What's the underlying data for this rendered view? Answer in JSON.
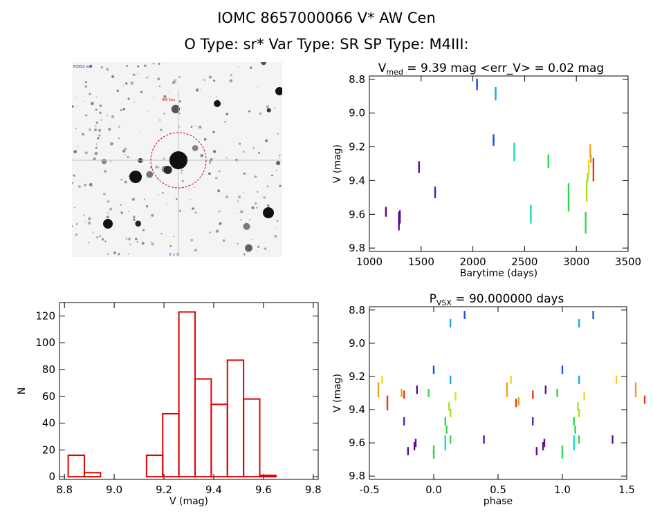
{
  "header": {
    "title": "IOMC 8657000066   V* AW Cen",
    "subtitle": "O Type: sr*  Var Type: SR  SP Type: M4III:"
  },
  "image_labels": {
    "top_left": "POSS2 red",
    "target": "AW Cen",
    "bottom": "3' x 3'"
  },
  "colors": {
    "histogram": "#dd0000",
    "axis": "#000000",
    "target_circle": "#dd0000"
  },
  "chart_data": [
    {
      "id": "lightcurve",
      "type": "scatter",
      "title_prefix": "V",
      "title_sub": "med",
      "title_suffix": " = 9.39 mag <err_V> = 0.02 mag",
      "xlabel": "Barytime (days)",
      "ylabel": "V (mag)",
      "xlim": [
        1000,
        3500
      ],
      "ylim": [
        9.82,
        8.78
      ],
      "xticks": [
        1000,
        1500,
        2000,
        2500,
        3000,
        3500
      ],
      "yticks": [
        8.8,
        9.0,
        9.2,
        9.4,
        9.6,
        9.8
      ],
      "series": [
        {
          "color": "#5a1090",
          "points": [
            [
              1160,
              9.58
            ],
            [
              1160,
              9.59
            ],
            [
              1285,
              9.61
            ],
            [
              1285,
              9.64
            ],
            [
              1285,
              9.67
            ],
            [
              1295,
              9.6
            ],
            [
              1295,
              9.63
            ],
            [
              1480,
              9.31
            ],
            [
              1480,
              9.33
            ]
          ]
        },
        {
          "color": "#3030c8",
          "points": [
            [
              1635,
              9.46
            ],
            [
              1635,
              9.48
            ]
          ]
        },
        {
          "color": "#2050e0",
          "points": [
            [
              2040,
              8.82
            ],
            [
              2040,
              8.84
            ],
            [
              2200,
              9.15
            ],
            [
              2200,
              9.17
            ]
          ]
        },
        {
          "color": "#18a8e8",
          "points": [
            [
              2220,
              8.87
            ],
            [
              2220,
              8.9
            ]
          ]
        },
        {
          "color": "#20d8c8",
          "points": [
            [
              2400,
              9.2
            ],
            [
              2400,
              9.23
            ],
            [
              2400,
              9.26
            ],
            [
              2560,
              9.57
            ],
            [
              2560,
              9.6
            ],
            [
              2560,
              9.63
            ]
          ]
        },
        {
          "color": "#30d850",
          "points": [
            [
              2730,
              9.27
            ],
            [
              2730,
              9.3
            ],
            [
              2925,
              9.44
            ],
            [
              2925,
              9.48
            ],
            [
              2925,
              9.52
            ],
            [
              2925,
              9.56
            ],
            [
              3090,
              9.61
            ],
            [
              3090,
              9.65
            ],
            [
              3090,
              9.69
            ]
          ]
        },
        {
          "color": "#a8e020",
          "points": [
            [
              3100,
              9.42
            ],
            [
              3100,
              9.46
            ],
            [
              3100,
              9.5
            ],
            [
              3110,
              9.38
            ]
          ]
        },
        {
          "color": "#e8d820",
          "points": [
            [
              3120,
              9.3
            ],
            [
              3120,
              9.34
            ]
          ]
        },
        {
          "color": "#f0a020",
          "points": [
            [
              3135,
              9.21
            ],
            [
              3135,
              9.24
            ],
            [
              3140,
              9.27
            ]
          ]
        },
        {
          "color": "#e04010",
          "points": [
            [
              3165,
              9.29
            ],
            [
              3165,
              9.33
            ],
            [
              3165,
              9.38
            ]
          ]
        }
      ]
    },
    {
      "id": "histogram",
      "type": "bar",
      "xlabel": "V (mag)",
      "ylabel": "N",
      "xlim": [
        8.78,
        9.82
      ],
      "ylim": [
        -2,
        130
      ],
      "xticks": [
        8.8,
        9.0,
        9.2,
        9.4,
        9.6,
        9.8
      ],
      "yticks": [
        0,
        20,
        40,
        60,
        80,
        100,
        120
      ],
      "bin_width": 0.065,
      "bins": [
        {
          "x": 8.815,
          "count": 16
        },
        {
          "x": 8.88,
          "count": 3
        },
        {
          "x": 9.13,
          "count": 16
        },
        {
          "x": 9.195,
          "count": 47
        },
        {
          "x": 9.26,
          "count": 123
        },
        {
          "x": 9.325,
          "count": 73
        },
        {
          "x": 9.39,
          "count": 54
        },
        {
          "x": 9.455,
          "count": 87
        },
        {
          "x": 9.52,
          "count": 58
        },
        {
          "x": 9.585,
          "count": 1
        }
      ]
    },
    {
      "id": "phased",
      "type": "scatter",
      "title_prefix": "P",
      "title_sub": "VSX",
      "title_suffix": " = 90.000000 days",
      "xlabel": "phase",
      "ylabel": "V (mag)",
      "xlim": [
        -0.5,
        1.5
      ],
      "ylim": [
        9.82,
        8.78
      ],
      "xticks": [
        -0.5,
        0.0,
        0.5,
        1.0,
        1.5
      ],
      "yticks": [
        8.8,
        9.0,
        9.2,
        9.4,
        9.6,
        9.8
      ],
      "series": [
        {
          "color": "#5a1090",
          "points": [
            [
              -0.2,
              9.65
            ],
            [
              -0.15,
              9.62
            ],
            [
              -0.14,
              9.6
            ],
            [
              -0.13,
              9.28
            ],
            [
              0.39,
              9.58
            ],
            [
              0.8,
              9.65
            ],
            [
              0.85,
              9.62
            ],
            [
              0.86,
              9.6
            ],
            [
              0.87,
              9.28
            ],
            [
              1.39,
              9.58
            ]
          ]
        },
        {
          "color": "#3030c8",
          "points": [
            [
              -0.23,
              9.47
            ],
            [
              0.77,
              9.47
            ]
          ]
        },
        {
          "color": "#2050e0",
          "points": [
            [
              0.0,
              9.16
            ],
            [
              0.24,
              8.83
            ],
            [
              1.0,
              9.16
            ],
            [
              1.24,
              8.83
            ]
          ]
        },
        {
          "color": "#18a8e8",
          "points": [
            [
              0.13,
              8.88
            ],
            [
              0.13,
              9.22
            ],
            [
              1.13,
              8.88
            ],
            [
              1.13,
              9.22
            ]
          ]
        },
        {
          "color": "#20d8c8",
          "points": [
            [
              0.09,
              9.58
            ],
            [
              0.09,
              9.62
            ],
            [
              1.09,
              9.58
            ],
            [
              1.09,
              9.62
            ]
          ]
        },
        {
          "color": "#30d850",
          "points": [
            [
              -0.04,
              9.3
            ],
            [
              0.0,
              9.64
            ],
            [
              0.0,
              9.67
            ],
            [
              0.09,
              9.47
            ],
            [
              0.1,
              9.52
            ],
            [
              0.13,
              9.58
            ],
            [
              0.96,
              9.3
            ],
            [
              1.0,
              9.64
            ],
            [
              1.0,
              9.67
            ],
            [
              1.09,
              9.47
            ],
            [
              1.1,
              9.52
            ],
            [
              1.13,
              9.58
            ]
          ]
        },
        {
          "color": "#a8e020",
          "points": [
            [
              0.12,
              9.38
            ],
            [
              0.13,
              9.42
            ],
            [
              1.12,
              9.38
            ],
            [
              1.13,
              9.42
            ]
          ]
        },
        {
          "color": "#e8d820",
          "points": [
            [
              0.17,
              9.32
            ],
            [
              -0.4,
              9.22
            ],
            [
              0.6,
              9.22
            ],
            [
              1.17,
              9.32
            ],
            [
              1.42,
              9.22
            ]
          ]
        },
        {
          "color": "#f0a020",
          "points": [
            [
              -0.43,
              9.26
            ],
            [
              -0.43,
              9.3
            ],
            [
              -0.25,
              9.3
            ],
            [
              0.57,
              9.26
            ],
            [
              0.57,
              9.3
            ],
            [
              0.66,
              9.35
            ],
            [
              1.57,
              9.26
            ],
            [
              1.57,
              9.3
            ]
          ]
        },
        {
          "color": "#e04010",
          "points": [
            [
              -0.36,
              9.34
            ],
            [
              -0.36,
              9.38
            ],
            [
              -0.23,
              9.31
            ],
            [
              0.64,
              9.36
            ],
            [
              0.77,
              9.31
            ],
            [
              1.64,
              9.34
            ]
          ]
        }
      ]
    }
  ]
}
